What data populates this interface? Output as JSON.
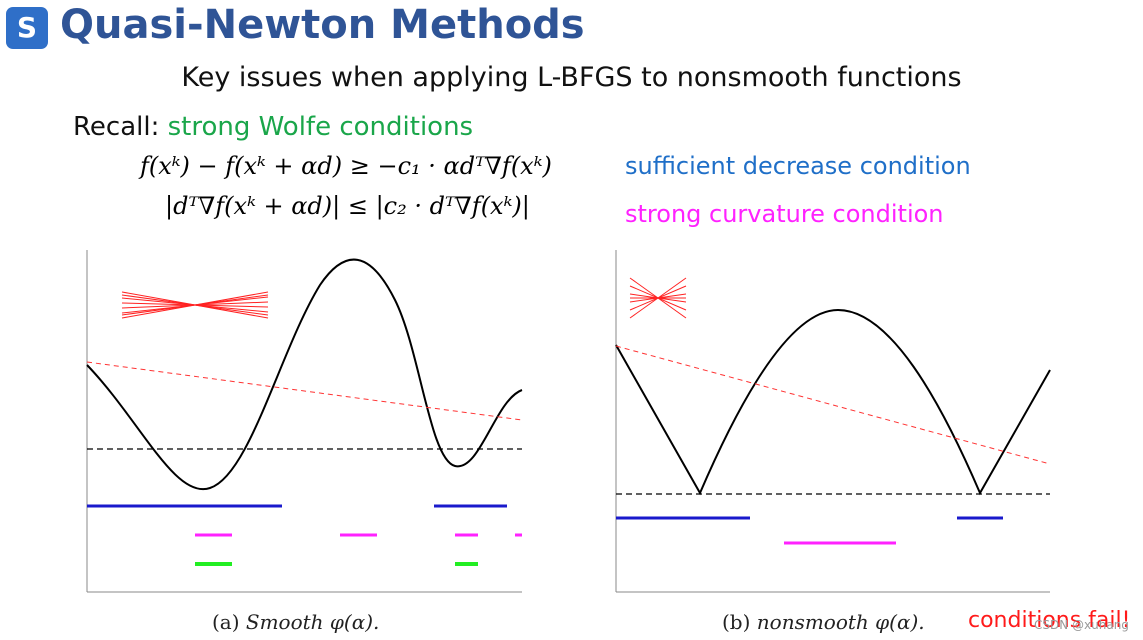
{
  "header": {
    "logo_glyph": "S",
    "title": "Quasi-Newton Methods"
  },
  "subtitle": "Key issues when applying L-BFGS to nonsmooth functions",
  "recall": {
    "label": "Recall: ",
    "highlight": "strong Wolfe conditions"
  },
  "equations": {
    "sufficient_decrease": "f(xᵏ) − f(xᵏ + αd) ≥ −c₁ · αdᵀ∇f(xᵏ)",
    "strong_curvature": "|dᵀ∇f(xᵏ + αd)| ≤ |c₂ · dᵀ∇f(xᵏ)|"
  },
  "conditions": {
    "sufficient_decrease_label": "sufficient decrease condition",
    "strong_curvature_label": "strong curvature condition"
  },
  "captions": {
    "a_prefix": "(a) ",
    "a_text": "Smooth φ(α).",
    "b_prefix": "(b) ",
    "b_text": "nonsmooth φ(α)."
  },
  "fail_note": "conditions fail!",
  "watermark": "CSDN @xuhang",
  "colors": {
    "title": "#2f5496",
    "green_text": "#1aa64a",
    "blue_text": "#1f6fc8",
    "magenta_text": "#ff22ff",
    "fail_text": "#ff1a1a"
  }
}
